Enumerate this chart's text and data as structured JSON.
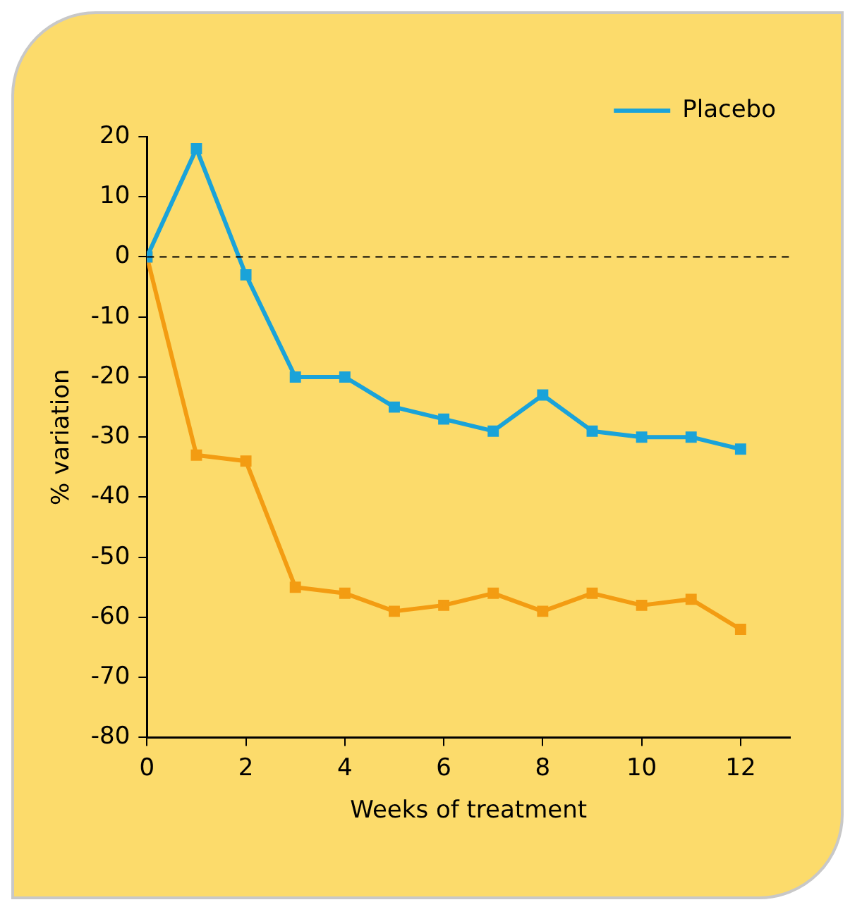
{
  "chart_data": {
    "type": "line",
    "xlabel": "Weeks of treatment",
    "ylabel": "% variation",
    "x": [
      0,
      1,
      2,
      3,
      4,
      5,
      6,
      7,
      8,
      9,
      10,
      11,
      12
    ],
    "series": [
      {
        "name": "Placebo",
        "color": "#1aa3d9",
        "values": [
          0,
          18,
          -3,
          -20,
          -20,
          -25,
          -27,
          -29,
          -23,
          -29,
          -30,
          -30,
          -32
        ]
      },
      {
        "color": "#f39c12",
        "values": [
          0,
          -33,
          -34,
          -55,
          -56,
          -59,
          -58,
          -56,
          -59,
          -56,
          -58,
          -57,
          -62
        ]
      }
    ],
    "xlim": [
      0,
      13
    ],
    "xticks": [
      0,
      2,
      4,
      6,
      8,
      10,
      12
    ],
    "ylim": [
      -80,
      20
    ],
    "yticks": [
      -80,
      -70,
      -60,
      -50,
      -40,
      -30,
      -20,
      -10,
      0,
      10,
      20
    ],
    "ref_lines": [
      {
        "axis": "y",
        "value": 0,
        "color": "#000000",
        "line_style": "dashed"
      }
    ],
    "legend": "top right",
    "marker": "square",
    "line_style": "solid",
    "grid": false
  }
}
